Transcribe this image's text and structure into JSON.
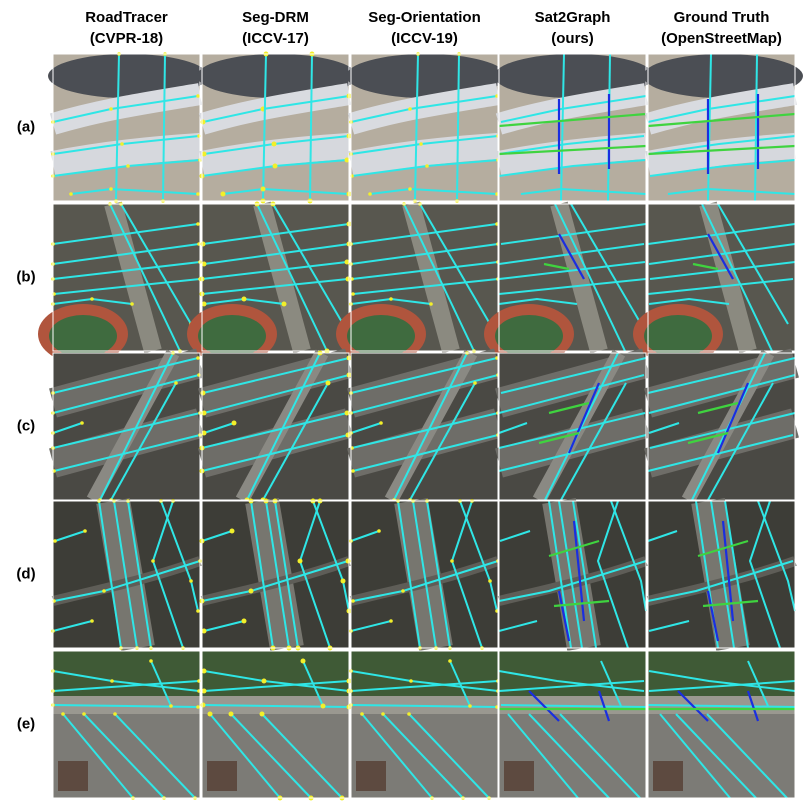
{
  "columns": [
    {
      "name": "RoadTracer",
      "venue": "(CVPR-18)"
    },
    {
      "name": "Seg-DRM",
      "venue": "(ICCV-17)"
    },
    {
      "name": "Seg-Orientation",
      "venue": "(ICCV-19)"
    },
    {
      "name": "Sat2Graph",
      "venue": "(ours)"
    },
    {
      "name": "Ground Truth",
      "venue": "(OpenStreetMap)"
    }
  ],
  "rows": [
    "(a)",
    "(b)",
    "(c)",
    "(d)",
    "(e)"
  ]
}
